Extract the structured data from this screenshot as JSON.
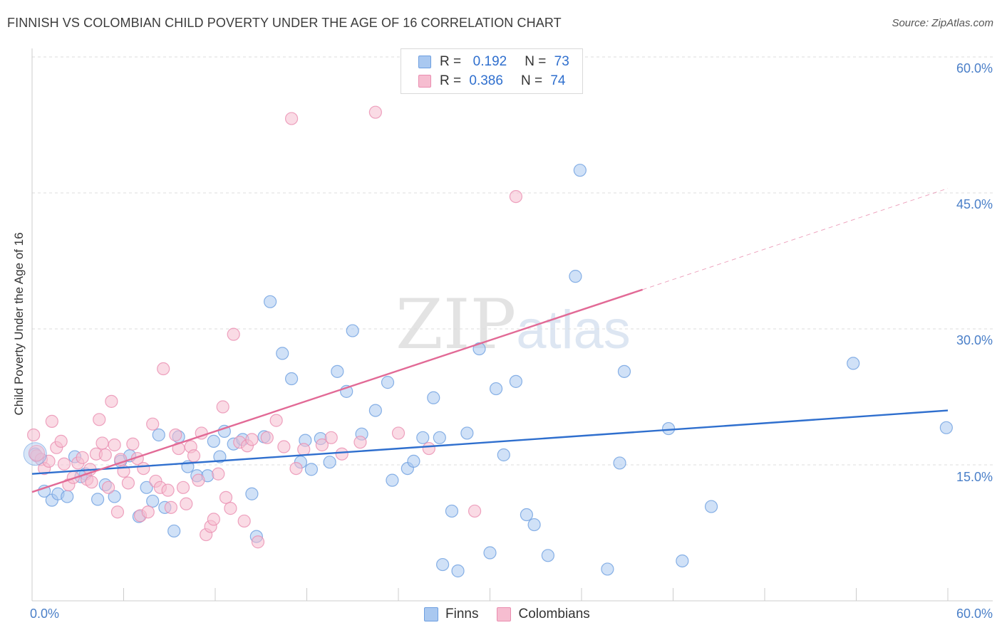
{
  "title": "FINNISH VS COLOMBIAN CHILD POVERTY UNDER THE AGE OF 16 CORRELATION CHART",
  "source": "Source: ZipAtlas.com",
  "watermark": {
    "zip": "ZIP",
    "atlas": "atlas"
  },
  "legend": {
    "items": [
      {
        "r_label": "R =",
        "r_value": "0.192",
        "n_label": "N =",
        "n_value": "73"
      },
      {
        "r_label": "R =",
        "r_value": "0.386",
        "n_label": "N =",
        "n_value": "74"
      }
    ]
  },
  "bottom_legend": {
    "finns": "Finns",
    "colombians": "Colombians"
  },
  "colors": {
    "finns_fill": "#a9c8f0",
    "finns_stroke": "#6d9fe0",
    "finns_line": "#2f6fce",
    "colombians_fill": "#f6bdd0",
    "colombians_stroke": "#ea8db0",
    "colombians_line": "#e26a96",
    "grid": "#dddddd",
    "tick_label": "#4a7fc8"
  },
  "chart_data": {
    "type": "scatter",
    "title": "FINNISH VS COLOMBIAN CHILD POVERTY UNDER THE AGE OF 16 CORRELATION CHART",
    "xlabel": "",
    "ylabel": "Child Poverty Under the Age of 16",
    "xlim": [
      0,
      60
    ],
    "ylim": [
      0,
      60
    ],
    "x_tick_labels": [
      "0.0%",
      "60.0%"
    ],
    "y_tick_labels": [
      "15.0%",
      "30.0%",
      "45.0%",
      "60.0%"
    ],
    "y_ticks": [
      15,
      30,
      45,
      60
    ],
    "grid": true,
    "legend_position": "top-center",
    "series": [
      {
        "name": "Finns",
        "R": 0.192,
        "N": 73,
        "trend": {
          "x": [
            0,
            60
          ],
          "y": [
            14.0,
            21.0
          ],
          "dashed_extension": false
        },
        "points": [
          [
            0.2,
            16.2
          ],
          [
            0.8,
            12.1
          ],
          [
            1.3,
            11.1
          ],
          [
            1.7,
            11.8
          ],
          [
            2.3,
            11.5
          ],
          [
            2.8,
            15.9
          ],
          [
            3.5,
            14.0
          ],
          [
            3.2,
            13.7
          ],
          [
            4.3,
            11.2
          ],
          [
            4.8,
            12.8
          ],
          [
            5.4,
            11.5
          ],
          [
            5.8,
            15.4
          ],
          [
            6.4,
            16.0
          ],
          [
            7.0,
            9.3
          ],
          [
            7.5,
            12.5
          ],
          [
            7.9,
            11.0
          ],
          [
            8.3,
            18.3
          ],
          [
            8.7,
            10.3
          ],
          [
            9.3,
            7.7
          ],
          [
            9.6,
            18.1
          ],
          [
            10.2,
            14.8
          ],
          [
            10.8,
            13.8
          ],
          [
            11.5,
            13.8
          ],
          [
            11.9,
            17.6
          ],
          [
            12.3,
            15.9
          ],
          [
            12.6,
            18.7
          ],
          [
            13.2,
            17.3
          ],
          [
            13.8,
            17.8
          ],
          [
            14.4,
            11.8
          ],
          [
            14.7,
            7.1
          ],
          [
            15.2,
            18.1
          ],
          [
            15.6,
            33.0
          ],
          [
            16.4,
            27.3
          ],
          [
            17.0,
            24.5
          ],
          [
            17.6,
            15.3
          ],
          [
            17.9,
            17.7
          ],
          [
            18.3,
            14.5
          ],
          [
            18.9,
            17.9
          ],
          [
            19.5,
            15.3
          ],
          [
            20.0,
            25.3
          ],
          [
            20.6,
            23.1
          ],
          [
            21.0,
            29.8
          ],
          [
            21.6,
            18.4
          ],
          [
            22.5,
            21.0
          ],
          [
            23.3,
            24.1
          ],
          [
            23.6,
            13.3
          ],
          [
            24.6,
            14.6
          ],
          [
            25.0,
            15.4
          ],
          [
            25.6,
            18.0
          ],
          [
            26.3,
            22.4
          ],
          [
            26.7,
            18.0
          ],
          [
            26.9,
            4.0
          ],
          [
            27.5,
            9.9
          ],
          [
            27.9,
            3.3
          ],
          [
            28.5,
            18.5
          ],
          [
            29.3,
            27.8
          ],
          [
            30.0,
            5.3
          ],
          [
            30.4,
            23.4
          ],
          [
            30.9,
            16.1
          ],
          [
            31.7,
            24.2
          ],
          [
            32.4,
            9.5
          ],
          [
            32.9,
            8.4
          ],
          [
            33.8,
            5.0
          ],
          [
            35.6,
            35.8
          ],
          [
            35.9,
            47.5
          ],
          [
            37.7,
            3.5
          ],
          [
            38.5,
            15.2
          ],
          [
            38.8,
            25.3
          ],
          [
            41.7,
            19.0
          ],
          [
            42.6,
            4.4
          ],
          [
            44.5,
            10.4
          ],
          [
            53.8,
            26.2
          ],
          [
            59.9,
            19.1
          ]
        ]
      },
      {
        "name": "Colombians",
        "R": 0.386,
        "N": 74,
        "trend": {
          "x": [
            0,
            60
          ],
          "y": [
            12.0,
            45.5
          ],
          "solid_until_x": 40.0,
          "dashed_extension": true
        },
        "points": [
          [
            0.1,
            18.3
          ],
          [
            0.3,
            16.0
          ],
          [
            0.6,
            15.6
          ],
          [
            0.8,
            14.6
          ],
          [
            1.1,
            15.4
          ],
          [
            1.3,
            19.8
          ],
          [
            1.6,
            16.9
          ],
          [
            1.9,
            17.6
          ],
          [
            2.1,
            15.1
          ],
          [
            2.4,
            12.8
          ],
          [
            2.7,
            13.6
          ],
          [
            3.0,
            15.2
          ],
          [
            3.3,
            15.8
          ],
          [
            3.6,
            13.4
          ],
          [
            3.8,
            14.5
          ],
          [
            3.9,
            13.1
          ],
          [
            4.2,
            16.2
          ],
          [
            4.4,
            20.0
          ],
          [
            4.6,
            17.4
          ],
          [
            4.8,
            16.1
          ],
          [
            5.0,
            12.5
          ],
          [
            5.2,
            22.0
          ],
          [
            5.4,
            17.2
          ],
          [
            5.6,
            9.8
          ],
          [
            5.8,
            15.6
          ],
          [
            6.0,
            14.3
          ],
          [
            6.3,
            13.0
          ],
          [
            6.6,
            17.3
          ],
          [
            6.9,
            15.7
          ],
          [
            7.1,
            9.4
          ],
          [
            7.3,
            14.6
          ],
          [
            7.6,
            9.8
          ],
          [
            7.9,
            19.5
          ],
          [
            8.1,
            13.2
          ],
          [
            8.4,
            12.5
          ],
          [
            8.6,
            25.6
          ],
          [
            8.9,
            12.2
          ],
          [
            9.1,
            10.3
          ],
          [
            9.4,
            18.3
          ],
          [
            9.6,
            16.8
          ],
          [
            9.9,
            12.5
          ],
          [
            10.1,
            10.7
          ],
          [
            10.4,
            17.0
          ],
          [
            10.6,
            16.0
          ],
          [
            10.9,
            13.3
          ],
          [
            11.1,
            18.5
          ],
          [
            11.4,
            7.3
          ],
          [
            11.7,
            8.2
          ],
          [
            11.9,
            9.0
          ],
          [
            12.2,
            14.0
          ],
          [
            12.5,
            21.4
          ],
          [
            12.7,
            11.4
          ],
          [
            13.0,
            10.2
          ],
          [
            13.2,
            29.4
          ],
          [
            13.6,
            17.5
          ],
          [
            13.9,
            8.8
          ],
          [
            14.1,
            17.1
          ],
          [
            14.4,
            17.8
          ],
          [
            14.8,
            6.5
          ],
          [
            15.4,
            18.0
          ],
          [
            16.0,
            19.9
          ],
          [
            16.5,
            17.0
          ],
          [
            17.3,
            14.6
          ],
          [
            17.8,
            16.7
          ],
          [
            19.0,
            17.2
          ],
          [
            19.6,
            18.0
          ],
          [
            20.3,
            16.2
          ],
          [
            21.5,
            17.5
          ],
          [
            24.0,
            18.5
          ],
          [
            26.0,
            16.8
          ],
          [
            29.0,
            9.9
          ],
          [
            17.0,
            53.2
          ],
          [
            22.5,
            53.9
          ],
          [
            31.7,
            44.6
          ]
        ]
      }
    ]
  }
}
